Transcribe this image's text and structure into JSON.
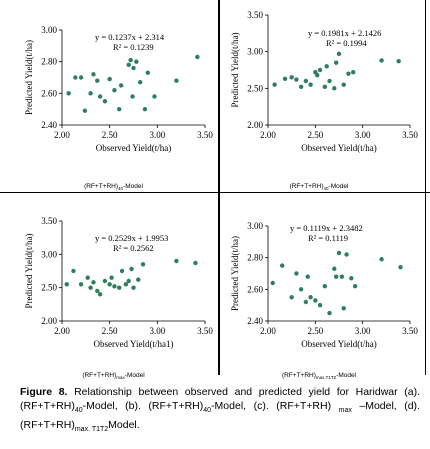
{
  "chart_data": [
    {
      "type": "scatter",
      "xlabel": "Observed Yield(t/ha)",
      "ylabel": "Predicted Yield(t/ha)",
      "xlim": [
        2.0,
        3.5
      ],
      "ylim": [
        2.4,
        3.0
      ],
      "xticks": [
        "2.00",
        "2.50",
        "3.00",
        "3.50"
      ],
      "yticks": [
        "2.40",
        "2.60",
        "2.80",
        "3.00"
      ],
      "equation": "y = 0.1237x + 2.314",
      "r2": "R² = 0.1239",
      "caption_main": "(RF+T+RH)",
      "caption_sub": "40",
      "caption_tail": "-Model",
      "x": [
        2.07,
        2.14,
        2.2,
        2.24,
        2.3,
        2.33,
        2.37,
        2.4,
        2.45,
        2.5,
        2.55,
        2.6,
        2.62,
        2.7,
        2.72,
        2.74,
        2.75,
        2.78,
        2.82,
        2.87,
        2.9,
        2.97,
        3.2,
        3.42
      ],
      "y": [
        2.6,
        2.7,
        2.7,
        2.49,
        2.6,
        2.72,
        2.68,
        2.58,
        2.55,
        2.69,
        2.62,
        2.5,
        2.65,
        2.78,
        2.81,
        2.58,
        2.76,
        2.8,
        2.67,
        2.5,
        2.73,
        2.58,
        2.68,
        2.83
      ]
    },
    {
      "type": "scatter",
      "xlabel": "Observed Yield(t/ha)",
      "ylabel": "Predicted Yield(t/ha)",
      "xlim": [
        2.0,
        3.5
      ],
      "ylim": [
        2.0,
        3.5
      ],
      "xticks": [
        "2.00",
        "2.50",
        "3.00",
        "3.50"
      ],
      "yticks": [
        "2.00",
        "2.50",
        "3.00",
        "3.50"
      ],
      "equation": "y = 0.1981x + 2.1426",
      "r2": "R² = 0.1994",
      "caption_main": "(RF+T+RH)",
      "caption_sub": "40",
      "caption_tail": "-Model",
      "x": [
        2.07,
        2.18,
        2.25,
        2.3,
        2.35,
        2.4,
        2.45,
        2.5,
        2.52,
        2.55,
        2.6,
        2.62,
        2.65,
        2.7,
        2.72,
        2.75,
        2.8,
        2.85,
        2.9,
        3.2,
        3.38
      ],
      "y": [
        2.55,
        2.63,
        2.65,
        2.62,
        2.52,
        2.6,
        2.55,
        2.72,
        2.68,
        2.75,
        2.52,
        2.8,
        2.6,
        2.5,
        2.85,
        2.97,
        2.55,
        2.7,
        2.72,
        2.88,
        2.87
      ]
    },
    {
      "type": "scatter",
      "xlabel": "Observed Yield(t/ha1)",
      "ylabel": "Predicted Yield(t/ha)",
      "xlim": [
        2.0,
        3.5
      ],
      "ylim": [
        2.0,
        3.5
      ],
      "xticks": [
        "2.00",
        "2.50",
        "3.00",
        "3.50"
      ],
      "yticks": [
        "2.00",
        "2.50",
        "3.00",
        "3.50"
      ],
      "equation": "y = 0.2529x + 1.9953",
      "r2": "R² = 0.2562",
      "caption_main": "(RF+T+RH)",
      "caption_sub": "max",
      "caption_tail": "-Model",
      "x": [
        2.05,
        2.12,
        2.2,
        2.27,
        2.3,
        2.33,
        2.37,
        2.4,
        2.45,
        2.5,
        2.52,
        2.55,
        2.6,
        2.63,
        2.67,
        2.7,
        2.73,
        2.75,
        2.8,
        2.85,
        3.2,
        3.4
      ],
      "y": [
        2.55,
        2.75,
        2.55,
        2.65,
        2.5,
        2.58,
        2.45,
        2.4,
        2.6,
        2.55,
        2.65,
        2.52,
        2.5,
        2.75,
        2.55,
        2.6,
        2.78,
        2.5,
        2.62,
        2.85,
        2.9,
        2.87
      ]
    },
    {
      "type": "scatter",
      "xlabel": "Observed Yield(t/ha)",
      "ylabel": "Predicted Yield(t/ha)",
      "xlim": [
        2.0,
        3.5
      ],
      "ylim": [
        2.4,
        3.0
      ],
      "xticks": [
        "2.00",
        "2.50",
        "3.00",
        "3.50"
      ],
      "yticks": [
        "2.40",
        "2.60",
        "2.80",
        "3.00"
      ],
      "equation": "y = 0.1119x + 2.3482",
      "r2": "R² = 0.1119",
      "caption_main": "(RF+T+RH)",
      "caption_sub": "max.T1T2",
      "caption_tail": "-Model",
      "x": [
        2.05,
        2.15,
        2.25,
        2.3,
        2.35,
        2.4,
        2.42,
        2.45,
        2.5,
        2.55,
        2.6,
        2.65,
        2.7,
        2.72,
        2.75,
        2.78,
        2.8,
        2.83,
        2.88,
        2.92,
        3.2,
        3.4
      ],
      "y": [
        2.64,
        2.75,
        2.55,
        2.7,
        2.6,
        2.52,
        2.68,
        2.55,
        2.53,
        2.5,
        2.62,
        2.45,
        2.73,
        2.68,
        2.83,
        2.68,
        2.48,
        2.82,
        2.67,
        2.62,
        2.79,
        2.74
      ]
    }
  ],
  "caption": {
    "figure_label": "Figure 8.",
    "text_a": " Relationship between observed and predicted yield for Haridwar (a). (RF+T+RH)",
    "sub_a": "40",
    "text_b": "-Model, (b). (RF+T+RH)",
    "sub_b": "40",
    "text_c": "-Model, (c). (RF+T+RH) ",
    "sub_c": "max",
    "text_d": " –Model, (d). (RF+T+RH)",
    "sub_d": "max. T1T2",
    "text_e": "Model."
  }
}
